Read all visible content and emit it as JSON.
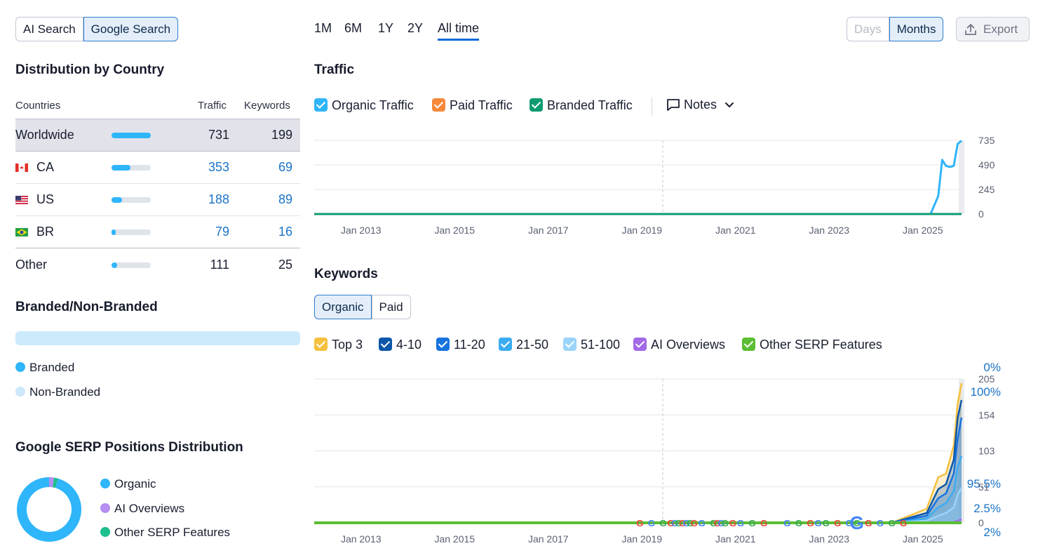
{
  "search_mode": {
    "options": [
      "AI Search",
      "Google Search"
    ],
    "selected": "Google Search"
  },
  "period_tabs": {
    "items": [
      "1M",
      "6M",
      "1Y",
      "2Y",
      "All time"
    ],
    "selected": "All time"
  },
  "granularity": {
    "days": "Days",
    "months": "Months",
    "selected": "Months"
  },
  "export_label": "Export",
  "distribution": {
    "title": "Distribution by Country",
    "headers": {
      "countries": "Countries",
      "traffic": "Traffic",
      "keywords": "Keywords"
    },
    "rows": [
      {
        "name": "Worldwide",
        "traffic": "731",
        "keywords": "199",
        "share": 1.0
      },
      {
        "name": "CA",
        "traffic": "353",
        "keywords": "69",
        "share": 0.48
      },
      {
        "name": "US",
        "traffic": "188",
        "keywords": "89",
        "share": 0.26
      },
      {
        "name": "BR",
        "traffic": "79",
        "keywords": "16",
        "share": 0.11
      },
      {
        "name": "Other",
        "traffic": "111",
        "keywords": "25",
        "share": 0.15
      }
    ]
  },
  "branded": {
    "title": "Branded/Non-Branded",
    "branded_label": "Branded",
    "branded_value": "0%",
    "nonbranded_label": "Non-Branded",
    "nonbranded_value": "100%",
    "branded_share": 0
  },
  "serp": {
    "title": "Google SERP Positions Distribution",
    "items": [
      {
        "label": "Organic",
        "value": "95.5%",
        "share": 95.5,
        "color": "#2fb5fa"
      },
      {
        "label": "AI Overviews",
        "value": "2.5%",
        "share": 2.5,
        "color": "#b48ef0"
      },
      {
        "label": "Other SERP Features",
        "value": "2%",
        "share": 2.0,
        "color": "#1dbf8e"
      }
    ]
  },
  "traffic": {
    "title": "Traffic",
    "legend": [
      {
        "label": "Organic Traffic",
        "color": "#2fb5fa"
      },
      {
        "label": "Paid Traffic",
        "color": "#f6883c"
      },
      {
        "label": "Branded Traffic",
        "color": "#0f9b72"
      }
    ],
    "notes_label": "Notes"
  },
  "keywords": {
    "title": "Keywords",
    "tabs": [
      "Organic",
      "Paid"
    ],
    "selected_tab": "Organic",
    "legend": [
      {
        "label": "Top 3",
        "color": "#f5c03e"
      },
      {
        "label": "4-10",
        "color": "#0b56a8"
      },
      {
        "label": "11-20",
        "color": "#1673e0"
      },
      {
        "label": "21-50",
        "color": "#3aacf3"
      },
      {
        "label": "51-100",
        "color": "#9bd4fa"
      },
      {
        "label": "AI Overviews",
        "color": "#a36ae8"
      },
      {
        "label": "Other SERP Features",
        "color": "#5bbd33"
      }
    ]
  },
  "chart_data": [
    {
      "type": "line",
      "title": "Traffic",
      "x_tick_labels": [
        "Jan 2013",
        "Jan 2015",
        "Jan 2017",
        "Jan 2019",
        "Jan 2021",
        "Jan 2023",
        "Jan 2025"
      ],
      "y_tick_labels": [
        "735",
        "490",
        "245",
        "0"
      ],
      "ylim": [
        0,
        735
      ],
      "x": [
        "2012-01",
        "2024-01",
        "2025-04",
        "2025-06",
        "2025-07",
        "2025-08",
        "2025-09",
        "2025-10",
        "2025-11",
        "2025-12"
      ],
      "series": [
        {
          "name": "Organic Traffic",
          "color": "#2fb5fa",
          "values": [
            0,
            0,
            0,
            180,
            540,
            480,
            470,
            480,
            700,
            731
          ]
        },
        {
          "name": "Branded Traffic",
          "color": "#0f9b72",
          "values": [
            0,
            0,
            0,
            0,
            0,
            0,
            0,
            0,
            0,
            0
          ]
        }
      ],
      "grid": true
    },
    {
      "type": "area",
      "title": "Keywords",
      "x_tick_labels": [
        "Jan 2013",
        "Jan 2015",
        "Jan 2017",
        "Jan 2019",
        "Jan 2021",
        "Jan 2023",
        "Jan 2025"
      ],
      "y_tick_labels": [
        "205",
        "154",
        "103",
        "51",
        "0"
      ],
      "ylim": [
        0,
        205
      ],
      "x": [
        "2012-01",
        "2024-06",
        "2025-03",
        "2025-06",
        "2025-08",
        "2025-10",
        "2025-11",
        "2025-12"
      ],
      "series": [
        {
          "name": "Top 3",
          "color": "#f5c03e",
          "values": [
            0,
            0,
            20,
            65,
            70,
            110,
            170,
            199
          ]
        },
        {
          "name": "4-10",
          "color": "#0b56a8",
          "values": [
            0,
            0,
            14,
            48,
            55,
            90,
            150,
            175
          ]
        },
        {
          "name": "11-20",
          "color": "#1673e0",
          "values": [
            0,
            0,
            10,
            35,
            42,
            70,
            120,
            150
          ]
        },
        {
          "name": "21-50",
          "color": "#3aacf3",
          "values": [
            0,
            0,
            6,
            22,
            28,
            45,
            80,
            95
          ]
        },
        {
          "name": "51-100",
          "color": "#9bd4fa",
          "values": [
            0,
            0,
            3,
            10,
            14,
            22,
            40,
            50
          ]
        },
        {
          "name": "AI Overviews",
          "color": "#a36ae8",
          "values": [
            0,
            0,
            0,
            0,
            0,
            1,
            3,
            5
          ]
        },
        {
          "name": "Other SERP Features",
          "color": "#5bbd33",
          "values": [
            0,
            0,
            0,
            0,
            0,
            0,
            0,
            0
          ]
        }
      ],
      "grid": true
    }
  ]
}
